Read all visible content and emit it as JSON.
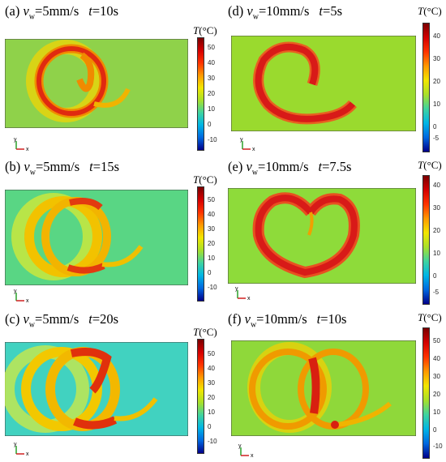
{
  "panels": [
    {
      "label": "(a)",
      "vw_value": "=5mm/s",
      "t_value": "=10s",
      "ticks": [
        "50",
        "40",
        "30",
        "20",
        "10",
        "0",
        "-10"
      ],
      "bg": "#8fd24a",
      "rim": "#f08a00",
      "core": "#e02a10"
    },
    {
      "label": "(b)",
      "vw_value": "=5mm/s",
      "t_value": "=15s",
      "ticks": [
        "50",
        "40",
        "30",
        "20",
        "10",
        "0",
        "-10"
      ],
      "bg": "#59d684",
      "rim": "#f2c200",
      "core": "#e23a10"
    },
    {
      "label": "(c)",
      "vw_value": "=5mm/s",
      "t_value": "=20s",
      "ticks": [
        "50",
        "40",
        "30",
        "20",
        "10",
        "0",
        "-10"
      ],
      "bg": "#41d2c0",
      "rim": "#f2c800",
      "core": "#e0300c"
    },
    {
      "label": "(d)",
      "vw_value": "=10mm/s",
      "t_value": "=5s",
      "ticks": [
        "40",
        "30",
        "20",
        "10",
        "0",
        "-5"
      ],
      "bg": "#9ada2e",
      "rim": "#e86020",
      "core": "#d81a18"
    },
    {
      "label": "(e)",
      "vw_value": "=10mm/s",
      "t_value": "=7.5s",
      "ticks": [
        "40",
        "30",
        "20",
        "10",
        "0",
        "-5"
      ],
      "bg": "#8edb3a",
      "rim": "#e85020",
      "core": "#d81a18"
    },
    {
      "label": "(f)",
      "vw_value": "=10mm/s",
      "t_value": "=10s",
      "ticks": [
        "50",
        "40",
        "30",
        "20",
        "10",
        "0",
        "-10"
      ],
      "bg": "#8fd83a",
      "rim": "#f09a00",
      "core": "#d82010"
    }
  ],
  "symbols": {
    "v": "v",
    "w": "w",
    "t": "t",
    "T": "T",
    "unit": "(°C)"
  },
  "axes": {
    "y": "y",
    "x": "x"
  }
}
